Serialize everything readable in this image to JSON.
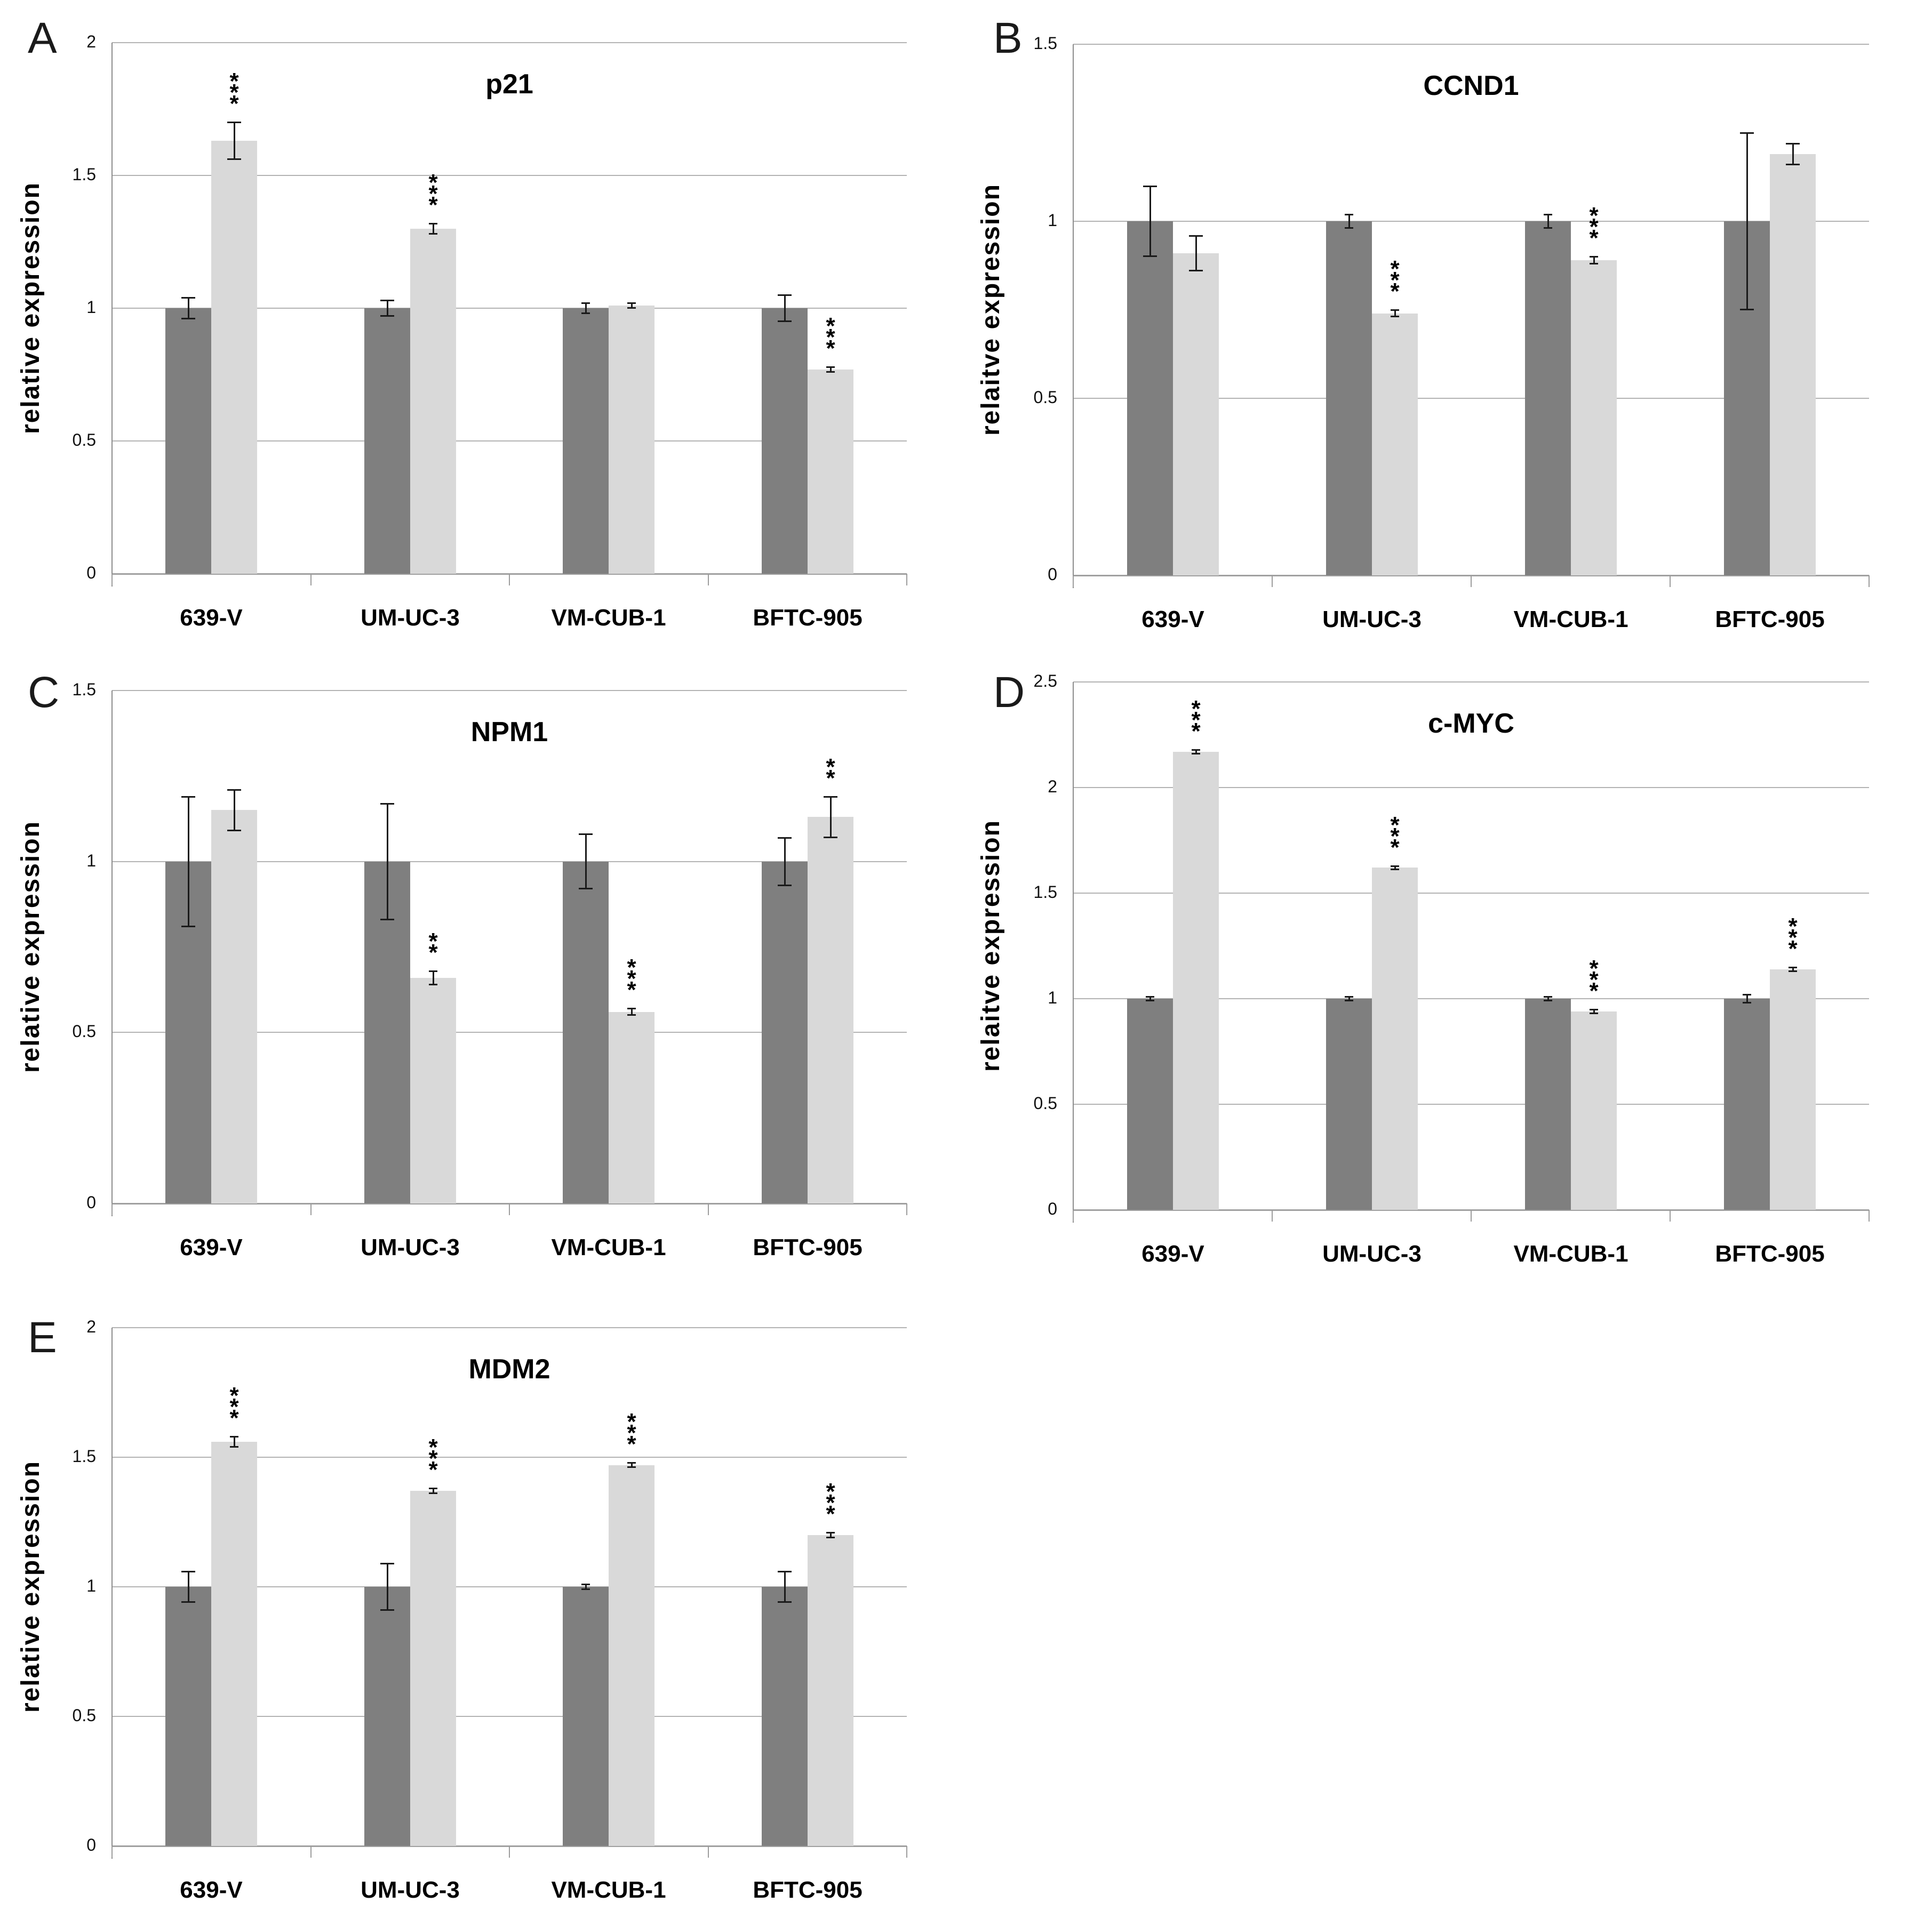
{
  "figure": {
    "type": "multi-panel-bar-figure",
    "panel_letters": [
      "A",
      "B",
      "C",
      "D",
      "E"
    ],
    "bar_colors": {
      "dark": "#7f7f7f",
      "light": "#d9d9d9"
    }
  },
  "chart_data": [
    {
      "panel": "A",
      "type": "bar",
      "title": "p21",
      "ylabel": "relative expression",
      "ylim": [
        0,
        2
      ],
      "ytick_step": 0.5,
      "ytick_labels": [
        "0",
        "0.5",
        "1",
        "1.5",
        "2"
      ],
      "grid": "horizontal",
      "legend": "none",
      "categories": [
        "639-V",
        "UM-UC-3",
        "VM-CUB-1",
        "BFTC-905"
      ],
      "series": [
        {
          "name": "dark-bar",
          "color": "#7f7f7f",
          "values": [
            1.0,
            1.0,
            1.0,
            1.0
          ],
          "errors": [
            0.04,
            0.03,
            0.02,
            0.05
          ]
        },
        {
          "name": "light-bar",
          "color": "#d9d9d9",
          "values": [
            1.63,
            1.3,
            1.01,
            0.77
          ],
          "errors": [
            0.07,
            0.02,
            0.01,
            0.01
          ]
        }
      ],
      "significance": [
        "***",
        "***",
        "",
        "***"
      ],
      "significance_on": "light-bar"
    },
    {
      "panel": "B",
      "type": "bar",
      "title": "CCND1",
      "ylabel": "relaitve expression",
      "ylim": [
        0,
        1.5
      ],
      "ytick_step": 0.5,
      "ytick_labels": [
        "0",
        "0.5",
        "1",
        "1.5"
      ],
      "grid": "horizontal",
      "legend": "none",
      "categories": [
        "639-V",
        "UM-UC-3",
        "VM-CUB-1",
        "BFTC-905"
      ],
      "series": [
        {
          "name": "dark-bar",
          "color": "#7f7f7f",
          "values": [
            1.0,
            1.0,
            1.0,
            1.0
          ],
          "errors": [
            0.1,
            0.02,
            0.02,
            0.25
          ]
        },
        {
          "name": "light-bar",
          "color": "#d9d9d9",
          "values": [
            0.91,
            0.74,
            0.89,
            1.19
          ],
          "errors": [
            0.05,
            0.01,
            0.01,
            0.03
          ]
        }
      ],
      "significance": [
        "",
        "***",
        "***",
        ""
      ],
      "significance_on": "light-bar"
    },
    {
      "panel": "C",
      "type": "bar",
      "title": "NPM1",
      "ylabel": "relative expression",
      "ylim": [
        0,
        1.5
      ],
      "ytick_step": 0.5,
      "ytick_labels": [
        "0",
        "0.5",
        "1",
        "1.5"
      ],
      "grid": "horizontal",
      "legend": "none",
      "categories": [
        "639-V",
        "UM-UC-3",
        "VM-CUB-1",
        "BFTC-905"
      ],
      "series": [
        {
          "name": "dark-bar",
          "color": "#7f7f7f",
          "values": [
            1.0,
            1.0,
            1.0,
            1.0
          ],
          "errors": [
            0.19,
            0.17,
            0.08,
            0.07
          ]
        },
        {
          "name": "light-bar",
          "color": "#d9d9d9",
          "values": [
            1.15,
            0.66,
            0.56,
            1.13
          ],
          "errors": [
            0.06,
            0.02,
            0.01,
            0.06
          ]
        }
      ],
      "significance": [
        "",
        "**",
        "***",
        "**"
      ],
      "significance_on": "light-bar"
    },
    {
      "panel": "D",
      "type": "bar",
      "title": "c-MYC",
      "ylabel": "relaitve expression",
      "ylim": [
        0,
        2.5
      ],
      "ytick_step": 0.5,
      "ytick_labels": [
        "0",
        "0.5",
        "1",
        "1.5",
        "2",
        "2.5"
      ],
      "grid": "horizontal",
      "legend": "none",
      "categories": [
        "639-V",
        "UM-UC-3",
        "VM-CUB-1",
        "BFTC-905"
      ],
      "series": [
        {
          "name": "dark-bar",
          "color": "#7f7f7f",
          "values": [
            1.0,
            1.0,
            1.0,
            1.0
          ],
          "errors": [
            0.01,
            0.01,
            0.01,
            0.02
          ]
        },
        {
          "name": "light-bar",
          "color": "#d9d9d9",
          "values": [
            2.17,
            1.62,
            0.94,
            1.14
          ],
          "errors": [
            0.01,
            0.01,
            0.01,
            0.01
          ]
        }
      ],
      "significance": [
        "***",
        "***",
        "***",
        "***"
      ],
      "significance_on": "light-bar"
    },
    {
      "panel": "E",
      "type": "bar",
      "title": "MDM2",
      "ylabel": "relative expression",
      "ylim": [
        0,
        2
      ],
      "ytick_step": 0.5,
      "ytick_labels": [
        "0",
        "0.5",
        "1",
        "1.5",
        "2"
      ],
      "grid": "horizontal",
      "legend": "none",
      "categories": [
        "639-V",
        "UM-UC-3",
        "VM-CUB-1",
        "BFTC-905"
      ],
      "series": [
        {
          "name": "dark-bar",
          "color": "#7f7f7f",
          "values": [
            1.0,
            1.0,
            1.0,
            1.0
          ],
          "errors": [
            0.06,
            0.09,
            0.01,
            0.06
          ]
        },
        {
          "name": "light-bar",
          "color": "#d9d9d9",
          "values": [
            1.56,
            1.37,
            1.47,
            1.2
          ],
          "errors": [
            0.02,
            0.01,
            0.01,
            0.01
          ]
        }
      ],
      "significance": [
        "***",
        "***",
        "***",
        "***"
      ],
      "significance_on": "light-bar"
    }
  ]
}
